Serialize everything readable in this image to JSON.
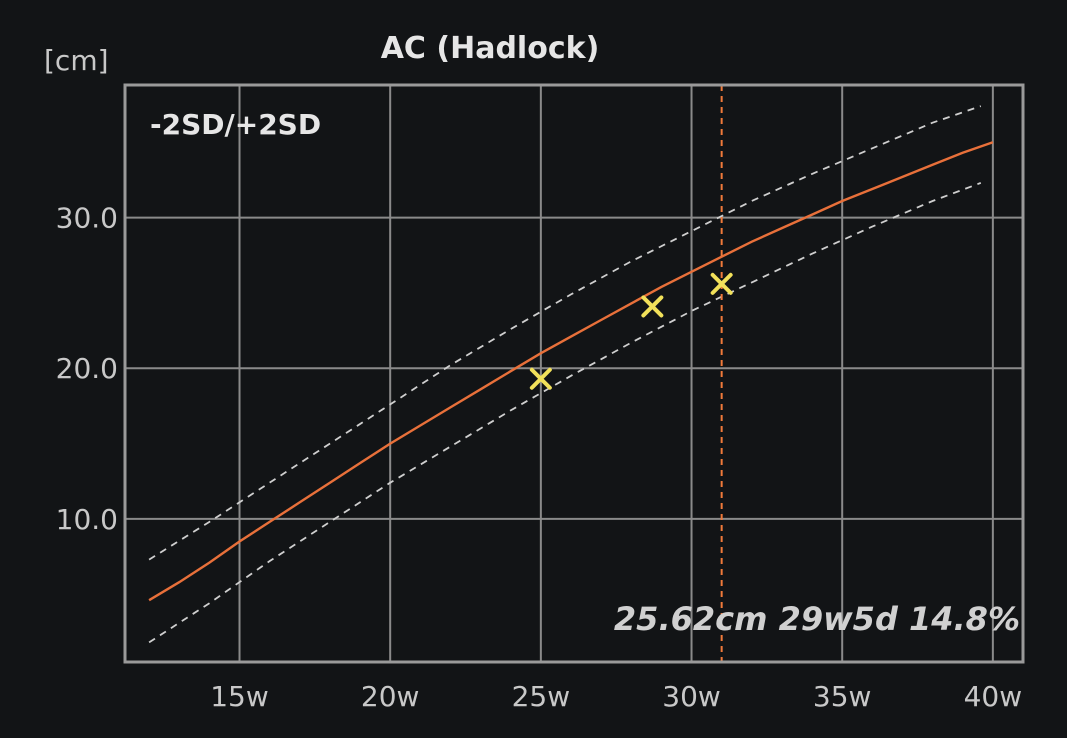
{
  "colors": {
    "background": "#121416",
    "frame": "#9a9a9a",
    "grid": "#8a8a8a",
    "mean_line": "#e8703a",
    "sd_lines": "#cfcfcf",
    "current_ga_marker": "#f07a3a",
    "measurement_marker": "#f2e15a",
    "text": "#d8d8d8"
  },
  "chart_data": {
    "type": "line",
    "title": "AC (Hadlock)",
    "ylabel": "[cm]",
    "band_label": "-2SD/+2SD",
    "measurement_text": "25.62cm 29w5d 14.8%",
    "xlim": [
      11.2,
      41.0
    ],
    "ylim": [
      0.5,
      38.8
    ],
    "x_ticks": [
      15,
      20,
      25,
      30,
      35,
      40
    ],
    "x_tick_labels": [
      "15w",
      "20w",
      "25w",
      "30w",
      "35w",
      "40w"
    ],
    "y_ticks": [
      10,
      20,
      30
    ],
    "y_tick_labels": [
      "10.0",
      "20.0",
      "30.0"
    ],
    "grid": true,
    "current_ga_week": 31.0,
    "series": [
      {
        "style": "solid",
        "x": [
          12,
          13,
          14,
          15,
          16,
          17,
          18,
          19,
          20,
          21,
          22,
          23,
          24,
          25,
          26,
          27,
          28,
          29,
          30,
          31,
          32,
          33,
          34,
          35,
          36,
          37,
          38,
          39,
          40
        ],
        "y": [
          4.6,
          5.8,
          7.1,
          8.5,
          9.8,
          11.1,
          12.4,
          13.7,
          15.0,
          16.2,
          17.4,
          18.6,
          19.8,
          21.0,
          22.1,
          23.2,
          24.3,
          25.4,
          26.4,
          27.4,
          28.4,
          29.3,
          30.2,
          31.1,
          31.9,
          32.7,
          33.5,
          34.3,
          35.0
        ]
      },
      {
        "style": "dashed",
        "x": [
          12,
          14,
          16,
          18,
          20,
          22,
          24,
          26,
          28,
          30,
          32,
          34,
          36,
          38,
          39.6
        ],
        "y": [
          7.3,
          9.8,
          12.4,
          15.0,
          17.6,
          20.2,
          22.6,
          24.9,
          27.1,
          29.1,
          31.1,
          32.9,
          34.6,
          36.3,
          37.4
        ]
      },
      {
        "style": "dashed",
        "x": [
          12,
          14,
          16,
          18,
          20,
          22,
          24,
          26,
          28,
          30,
          32,
          34,
          36,
          38,
          39.6
        ],
        "y": [
          1.8,
          4.4,
          7.2,
          9.8,
          12.4,
          14.8,
          17.2,
          19.5,
          21.7,
          23.8,
          25.7,
          27.6,
          29.4,
          31.1,
          32.3
        ]
      }
    ],
    "points": [
      {
        "x": 25.0,
        "y": 19.3
      },
      {
        "x": 28.7,
        "y": 24.1
      },
      {
        "x": 31.0,
        "y": 25.6
      }
    ]
  }
}
